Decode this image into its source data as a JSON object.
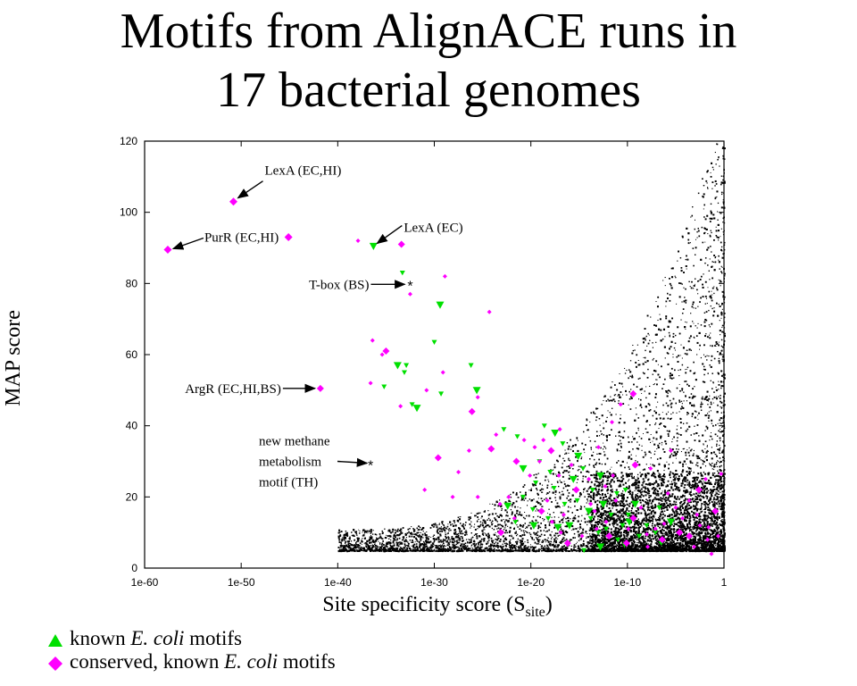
{
  "title": {
    "line1": "Motifs from AlignACE runs in",
    "line2": "17 bacterial genomes"
  },
  "chart_data": {
    "type": "scatter",
    "xlabel_main": "Site specificity score (S",
    "xlabel_sub": "site",
    "xlabel_close": ")",
    "ylabel": "MAP score",
    "xscale": "log",
    "xlim_log10": [
      -60,
      0
    ],
    "ylim": [
      0,
      120
    ],
    "x_ticks": [
      {
        "log10": -60,
        "label": "1e-60"
      },
      {
        "log10": -50,
        "label": "1e-50"
      },
      {
        "log10": -40,
        "label": "1e-40"
      },
      {
        "log10": -30,
        "label": "1e-30"
      },
      {
        "log10": -20,
        "label": "1e-20"
      },
      {
        "log10": -10,
        "label": "1e-10"
      },
      {
        "log10": 0,
        "label": "1"
      }
    ],
    "y_ticks": [
      0,
      20,
      40,
      60,
      80,
      100,
      120
    ],
    "colors": {
      "known": "#00e000",
      "conserved": "#ff00ff",
      "background": "#000000"
    },
    "legend": [
      {
        "symbol": "triangle",
        "color": "#00e000",
        "pre": "known ",
        "em": "E. coli",
        "post": " motifs"
      },
      {
        "symbol": "diamond",
        "color": "#ff00ff",
        "pre": "conserved, known ",
        "em": "E. coli",
        "post": " motifs"
      }
    ],
    "annotations": [
      {
        "text": "LexA (EC,HI)",
        "x_log10": -50.8,
        "y": 103
      },
      {
        "text": "PurR (EC,HI)",
        "x_log10": -57.6,
        "y": 89.5
      },
      {
        "text": "LexA (EC)",
        "x_log10": -36.3,
        "y": 90.5
      },
      {
        "text": "T-box (BS)",
        "x_log10": -32.5,
        "y": 79.5
      },
      {
        "text": "ArgR (EC,HI,BS)",
        "x_log10": -41.8,
        "y": 50.5
      },
      {
        "lines": [
          "new methane",
          "metabolism",
          "motif (TH)"
        ],
        "x_log10": -36.6,
        "y": 30
      }
    ],
    "series": [
      {
        "name": "known E. coli motifs",
        "marker": "triangle",
        "points": [
          [
            -36.3,
            90.5
          ],
          [
            -33.3,
            83
          ],
          [
            -35.2,
            51
          ],
          [
            -33.8,
            57
          ],
          [
            -33.1,
            55
          ],
          [
            -32.9,
            57
          ],
          [
            -31.8,
            45
          ],
          [
            -32.3,
            46
          ],
          [
            -30.0,
            63.5
          ],
          [
            -29.4,
            74
          ],
          [
            -29.3,
            49
          ],
          [
            -26.2,
            57
          ],
          [
            -25.6,
            50
          ],
          [
            -22.8,
            39
          ],
          [
            -21.4,
            37
          ],
          [
            -22.4,
            17.5
          ],
          [
            -20.8,
            20
          ],
          [
            -21.6,
            13
          ],
          [
            -19.7,
            12
          ],
          [
            -19.1,
            30
          ],
          [
            -18.6,
            40
          ],
          [
            -17.5,
            38
          ],
          [
            -16.7,
            35
          ],
          [
            -18.0,
            27
          ],
          [
            -15.6,
            25
          ],
          [
            -14.6,
            28
          ],
          [
            -13.6,
            22
          ],
          [
            -12.5,
            18
          ],
          [
            -11.1,
            21
          ],
          [
            -9.9,
            15
          ],
          [
            -16.0,
            12
          ],
          [
            -13.0,
            10
          ],
          [
            -11.0,
            8
          ],
          [
            -14.0,
            16
          ],
          [
            -12.2,
            11
          ],
          [
            -10.5,
            12
          ],
          [
            -9.2,
            18
          ],
          [
            -8.0,
            12
          ],
          [
            -7.1,
            10
          ],
          [
            -5.5,
            13
          ],
          [
            -15.2,
            19
          ],
          [
            -13.8,
            14
          ],
          [
            -12.8,
            6
          ],
          [
            -11.7,
            15
          ],
          [
            -8.8,
            9
          ],
          [
            -17.2,
            11.5
          ],
          [
            -16.5,
            18
          ],
          [
            -19.5,
            24
          ],
          [
            -20.8,
            28
          ],
          [
            -6.5,
            7
          ],
          [
            -10.3,
            6.5
          ],
          [
            -9.8,
            13
          ],
          [
            -14.5,
            5
          ],
          [
            -18.2,
            14
          ],
          [
            -12.8,
            26
          ],
          [
            -10.2,
            22
          ],
          [
            -6.7,
            17
          ],
          [
            -15.1,
            31.5
          ],
          [
            -17.6,
            22.5
          ],
          [
            -19.8,
            16.5
          ]
        ]
      },
      {
        "name": "conserved, known E. coli motifs",
        "marker": "diamond",
        "points": [
          [
            -50.8,
            103
          ],
          [
            -57.6,
            89.5
          ],
          [
            -45.1,
            93
          ],
          [
            -37.9,
            92
          ],
          [
            -33.4,
            91
          ],
          [
            -32.5,
            77
          ],
          [
            -28.9,
            82
          ],
          [
            -24.3,
            72
          ],
          [
            -35.0,
            61
          ],
          [
            -35.4,
            60
          ],
          [
            -36.4,
            64
          ],
          [
            -36.6,
            52
          ],
          [
            -41.8,
            50.5
          ],
          [
            -33.5,
            45.5
          ],
          [
            -30.8,
            50
          ],
          [
            -29.1,
            55
          ],
          [
            -26.1,
            44
          ],
          [
            -25.5,
            48
          ],
          [
            -26.4,
            33
          ],
          [
            -27.5,
            27
          ],
          [
            -29.6,
            31
          ],
          [
            -28.1,
            20
          ],
          [
            -31.0,
            22
          ],
          [
            -23.6,
            37.5
          ],
          [
            -24.1,
            33.5
          ],
          [
            -20.7,
            36
          ],
          [
            -19.6,
            34
          ],
          [
            -18.7,
            36
          ],
          [
            -17.9,
            33
          ],
          [
            -17.0,
            39
          ],
          [
            -15.8,
            29
          ],
          [
            -19.1,
            30
          ],
          [
            -15.3,
            22
          ],
          [
            -14.0,
            25
          ],
          [
            -12.3,
            23
          ],
          [
            -11.5,
            26
          ],
          [
            -9.2,
            29
          ],
          [
            -7.6,
            28
          ],
          [
            -5.5,
            33
          ],
          [
            -10.7,
            46
          ],
          [
            -9.4,
            49
          ],
          [
            -11.6,
            41
          ],
          [
            -13.0,
            34
          ],
          [
            -25.5,
            20
          ],
          [
            -23.1,
            10
          ],
          [
            -21.7,
            14
          ],
          [
            -18.3,
            19
          ],
          [
            -16.6,
            15
          ],
          [
            -16.2,
            7
          ],
          [
            -13.8,
            18
          ],
          [
            -13.2,
            11
          ],
          [
            -11.2,
            19
          ],
          [
            -9.4,
            14
          ],
          [
            -7.1,
            11
          ],
          [
            -5.0,
            17
          ],
          [
            -3.6,
            19
          ],
          [
            -3.6,
            9
          ],
          [
            -3.1,
            6
          ],
          [
            -2.8,
            15
          ],
          [
            -1.7,
            8
          ],
          [
            -0.9,
            16
          ],
          [
            -0.6,
            9
          ],
          [
            -1.3,
            4
          ],
          [
            -0.3,
            26.5
          ],
          [
            -2.6,
            22
          ],
          [
            -1.9,
            25
          ],
          [
            -2.5,
            12
          ],
          [
            -4.3,
            14
          ],
          [
            -6.4,
            8
          ],
          [
            -5.8,
            21
          ],
          [
            -7.9,
            6
          ],
          [
            -8.6,
            17
          ],
          [
            -10.1,
            7
          ],
          [
            -12.2,
            13
          ],
          [
            -14.7,
            9
          ],
          [
            -16.9,
            10
          ],
          [
            -18.9,
            16
          ],
          [
            -20.1,
            26
          ],
          [
            -22.3,
            20
          ],
          [
            -23.2,
            18
          ],
          [
            -21.5,
            30
          ],
          [
            -17.1,
            26
          ],
          [
            -17.8,
            13
          ],
          [
            -13.4,
            16
          ],
          [
            -11.9,
            9
          ],
          [
            -9.9,
            11
          ],
          [
            -8.0,
            9.5
          ],
          [
            -6.2,
            12.5
          ],
          [
            -4.6,
            10
          ],
          [
            -1.6,
            11.5
          ]
        ]
      }
    ]
  }
}
